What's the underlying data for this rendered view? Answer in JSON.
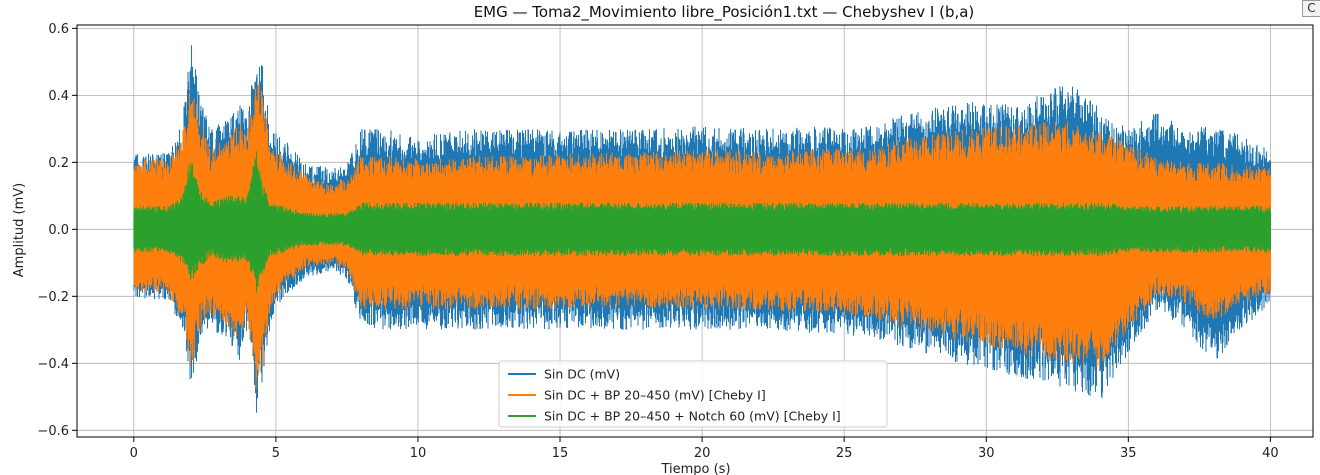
{
  "chart_data": {
    "type": "line",
    "title": "EMG — Toma2_Movimiento libre_Posición1.txt — Chebyshev I (b,a)",
    "xlabel": "Tiempo (s)",
    "ylabel": "Amplitud (mV)",
    "xlim": [
      -2,
      41.5
    ],
    "ylim": [
      -0.62,
      0.61
    ],
    "xticks": [
      0,
      5,
      10,
      15,
      20,
      25,
      30,
      35,
      40
    ],
    "xtick_labels": [
      "0",
      "5",
      "10",
      "15",
      "20",
      "25",
      "30",
      "35",
      "40"
    ],
    "yticks": [
      -0.6,
      -0.4,
      -0.2,
      0.0,
      0.2,
      0.4,
      0.6
    ],
    "ytick_labels": [
      "−0.6",
      "−0.4",
      "−0.2",
      "0.0",
      "0.2",
      "0.4",
      "0.6"
    ],
    "grid": true,
    "legend_position": "lower-center",
    "series": [
      {
        "name": "Sin DC (mV)",
        "color": "#1f77b4",
        "envelope": {
          "t": [
            0,
            0.5,
            1.2,
            1.7,
            2.0,
            2.3,
            2.7,
            3.2,
            3.7,
            4.0,
            4.3,
            4.5,
            4.8,
            5.3,
            6.0,
            7.0,
            7.5,
            8.0,
            9.0,
            10,
            12,
            14,
            16,
            18,
            20,
            22,
            24,
            25.5,
            27,
            29,
            31,
            33,
            34,
            35,
            36,
            37,
            38,
            39,
            40
          ],
          "upper": [
            0.23,
            0.23,
            0.23,
            0.32,
            0.57,
            0.4,
            0.3,
            0.33,
            0.38,
            0.35,
            0.55,
            0.5,
            0.3,
            0.27,
            0.2,
            0.18,
            0.2,
            0.3,
            0.3,
            0.28,
            0.3,
            0.3,
            0.3,
            0.3,
            0.31,
            0.3,
            0.31,
            0.3,
            0.34,
            0.38,
            0.38,
            0.44,
            0.36,
            0.3,
            0.36,
            0.3,
            0.31,
            0.28,
            0.24
          ],
          "lower": [
            -0.21,
            -0.21,
            -0.21,
            -0.3,
            -0.48,
            -0.35,
            -0.3,
            -0.32,
            -0.4,
            -0.3,
            -0.56,
            -0.47,
            -0.28,
            -0.2,
            -0.15,
            -0.12,
            -0.15,
            -0.3,
            -0.3,
            -0.3,
            -0.3,
            -0.3,
            -0.3,
            -0.3,
            -0.3,
            -0.3,
            -0.31,
            -0.32,
            -0.35,
            -0.4,
            -0.44,
            -0.48,
            -0.52,
            -0.37,
            -0.24,
            -0.3,
            -0.4,
            -0.3,
            -0.22
          ]
        }
      },
      {
        "name": "Sin DC + BP 20–450 (mV) [Cheby I]",
        "color": "#ff7f0e",
        "envelope": {
          "t": [
            0,
            0.5,
            1.2,
            1.7,
            2.0,
            2.3,
            2.7,
            3.2,
            3.7,
            4.0,
            4.3,
            4.5,
            4.8,
            5.3,
            6.0,
            7.0,
            7.5,
            8.0,
            9.0,
            10,
            12,
            14,
            16,
            18,
            20,
            22,
            24,
            25.5,
            27,
            29,
            31,
            33,
            34,
            35,
            36,
            37,
            38,
            39,
            40
          ],
          "upper": [
            0.21,
            0.21,
            0.21,
            0.28,
            0.45,
            0.33,
            0.24,
            0.28,
            0.32,
            0.3,
            0.48,
            0.42,
            0.25,
            0.22,
            0.17,
            0.14,
            0.16,
            0.22,
            0.22,
            0.21,
            0.22,
            0.22,
            0.23,
            0.23,
            0.24,
            0.23,
            0.24,
            0.24,
            0.27,
            0.3,
            0.31,
            0.33,
            0.3,
            0.25,
            0.22,
            0.2,
            0.2,
            0.19,
            0.19
          ],
          "lower": [
            -0.19,
            -0.19,
            -0.19,
            -0.27,
            -0.43,
            -0.3,
            -0.26,
            -0.28,
            -0.35,
            -0.26,
            -0.5,
            -0.42,
            -0.24,
            -0.17,
            -0.12,
            -0.1,
            -0.12,
            -0.24,
            -0.24,
            -0.24,
            -0.24,
            -0.24,
            -0.24,
            -0.24,
            -0.24,
            -0.24,
            -0.25,
            -0.26,
            -0.29,
            -0.33,
            -0.37,
            -0.41,
            -0.42,
            -0.3,
            -0.2,
            -0.22,
            -0.28,
            -0.22,
            -0.19
          ]
        }
      },
      {
        "name": "Sin DC + BP 20–450 + Notch 60 (mV) [Cheby I]",
        "color": "#2ca02c",
        "envelope": {
          "t": [
            0,
            0.5,
            1.2,
            1.7,
            2.0,
            2.3,
            2.7,
            3.2,
            3.7,
            4.0,
            4.3,
            4.5,
            4.8,
            5.3,
            6.0,
            7.0,
            7.5,
            8.0,
            9.0,
            10,
            12,
            14,
            16,
            18,
            20,
            22,
            24,
            25.5,
            27,
            29,
            31,
            33,
            34,
            35,
            36,
            37,
            38,
            39,
            40
          ],
          "upper": [
            0.07,
            0.07,
            0.07,
            0.1,
            0.22,
            0.12,
            0.08,
            0.1,
            0.1,
            0.1,
            0.25,
            0.14,
            0.08,
            0.07,
            0.05,
            0.05,
            0.05,
            0.08,
            0.08,
            0.08,
            0.08,
            0.08,
            0.08,
            0.08,
            0.08,
            0.08,
            0.08,
            0.08,
            0.08,
            0.08,
            0.08,
            0.08,
            0.08,
            0.07,
            0.07,
            0.07,
            0.07,
            0.07,
            0.07
          ],
          "lower": [
            -0.07,
            -0.07,
            -0.07,
            -0.1,
            -0.16,
            -0.12,
            -0.08,
            -0.1,
            -0.1,
            -0.1,
            -0.2,
            -0.14,
            -0.08,
            -0.07,
            -0.05,
            -0.05,
            -0.05,
            -0.08,
            -0.08,
            -0.08,
            -0.08,
            -0.08,
            -0.08,
            -0.08,
            -0.08,
            -0.08,
            -0.08,
            -0.08,
            -0.08,
            -0.08,
            -0.08,
            -0.08,
            -0.08,
            -0.07,
            -0.07,
            -0.07,
            -0.07,
            -0.07,
            -0.07
          ]
        }
      }
    ]
  },
  "ui": {
    "corner_button_label": "C"
  }
}
